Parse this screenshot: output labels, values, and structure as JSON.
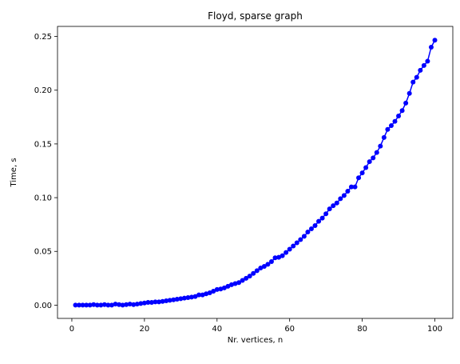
{
  "chart_data": {
    "type": "line",
    "title": "Floyd, sparse graph",
    "xlabel": "Nr. vertices, n",
    "ylabel": "Time, s",
    "xlim": [
      -3.95,
      104.95
    ],
    "ylim": [
      -0.01235,
      0.25935
    ],
    "xticks": [
      0,
      20,
      40,
      60,
      80,
      100
    ],
    "xtick_labels": [
      "0",
      "20",
      "40",
      "60",
      "80",
      "100"
    ],
    "yticks": [
      0.0,
      0.05,
      0.1,
      0.15,
      0.2,
      0.25
    ],
    "ytick_labels": [
      "0.00",
      "0.05",
      "0.10",
      "0.15",
      "0.20",
      "0.25"
    ],
    "grid": false,
    "series": [
      {
        "color": "#0000ff",
        "marker": "circle",
        "x": [
          1,
          2,
          3,
          4,
          5,
          6,
          7,
          8,
          9,
          10,
          11,
          12,
          13,
          14,
          15,
          16,
          17,
          18,
          19,
          20,
          21,
          22,
          23,
          24,
          25,
          26,
          27,
          28,
          29,
          30,
          31,
          32,
          33,
          34,
          35,
          36,
          37,
          38,
          39,
          40,
          41,
          42,
          43,
          44,
          45,
          46,
          47,
          48,
          49,
          50,
          51,
          52,
          53,
          54,
          55,
          56,
          57,
          58,
          59,
          60,
          61,
          62,
          63,
          64,
          65,
          66,
          67,
          68,
          69,
          70,
          71,
          72,
          73,
          74,
          75,
          76,
          77,
          78,
          79,
          80,
          81,
          82,
          83,
          84,
          85,
          86,
          87,
          88,
          89,
          90,
          91,
          92,
          93,
          94,
          95,
          96,
          97,
          98,
          99,
          100
        ],
        "y": [
          0.0,
          0.0,
          0.0,
          0.0,
          0.0,
          0.0005,
          0.0,
          0.0,
          0.0005,
          0.0,
          0.0,
          0.001,
          0.0005,
          0.0,
          0.0005,
          0.001,
          0.0005,
          0.001,
          0.0015,
          0.002,
          0.0025,
          0.0025,
          0.003,
          0.003,
          0.0035,
          0.004,
          0.0045,
          0.005,
          0.0055,
          0.006,
          0.0065,
          0.007,
          0.0075,
          0.008,
          0.0095,
          0.0095,
          0.0105,
          0.0115,
          0.013,
          0.0145,
          0.015,
          0.016,
          0.0175,
          0.019,
          0.02,
          0.021,
          0.023,
          0.025,
          0.027,
          0.0295,
          0.032,
          0.0345,
          0.036,
          0.038,
          0.0405,
          0.044,
          0.0445,
          0.046,
          0.049,
          0.052,
          0.055,
          0.058,
          0.061,
          0.064,
          0.068,
          0.071,
          0.074,
          0.078,
          0.081,
          0.085,
          0.0895,
          0.0925,
          0.095,
          0.099,
          0.102,
          0.106,
          0.11,
          0.11,
          0.1185,
          0.123,
          0.128,
          0.1335,
          0.137,
          0.142,
          0.148,
          0.156,
          0.1635,
          0.167,
          0.171,
          0.176,
          0.181,
          0.188,
          0.197,
          0.2075,
          0.212,
          0.2185,
          0.223,
          0.227,
          0.24,
          0.2465
        ]
      }
    ]
  }
}
